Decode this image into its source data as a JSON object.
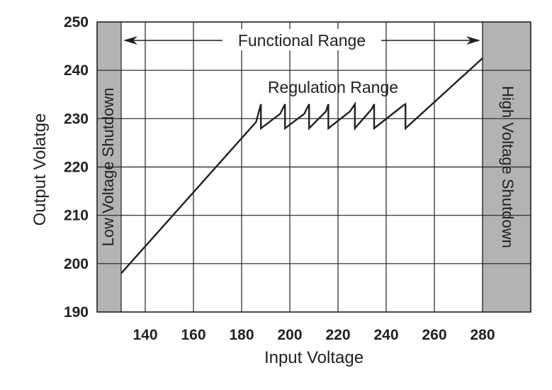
{
  "chart_data": {
    "type": "line",
    "xlabel": "Input Voltage",
    "ylabel": "Output Volatge",
    "xlim": [
      120,
      300
    ],
    "ylim": [
      190,
      250
    ],
    "xticks": [
      140,
      160,
      180,
      200,
      220,
      240,
      260,
      280
    ],
    "yticks": [
      190,
      200,
      210,
      220,
      230,
      240,
      250
    ],
    "grid": true,
    "series": [
      {
        "x": [
          130,
          186,
          188,
          188,
          196,
          198,
          198,
          206,
          208,
          208,
          215,
          216,
          216,
          225,
          227,
          227,
          234,
          235,
          235,
          247,
          248,
          248,
          280
        ],
        "y": [
          198,
          229.3,
          233,
          228,
          231,
          233,
          228,
          231,
          233,
          228,
          231.5,
          233,
          228,
          231.5,
          233,
          228,
          232,
          233,
          228,
          232.7,
          233,
          228,
          242.5
        ]
      }
    ],
    "shutdown_regions": [
      {
        "label": "Low Voltage Shutdown",
        "x_range": [
          120,
          130
        ],
        "color": "#b3b3b3"
      },
      {
        "label": "High Voltage Shutdown",
        "x_range": [
          280,
          300
        ],
        "color": "#b3b3b3"
      }
    ],
    "annotations": {
      "functional_range": {
        "label": "Functional Range",
        "x_range": [
          130,
          280
        ]
      },
      "regulation_range": {
        "label": "Regulation Range"
      }
    },
    "line_color": "#231f20",
    "grid_color": "#231f20"
  }
}
